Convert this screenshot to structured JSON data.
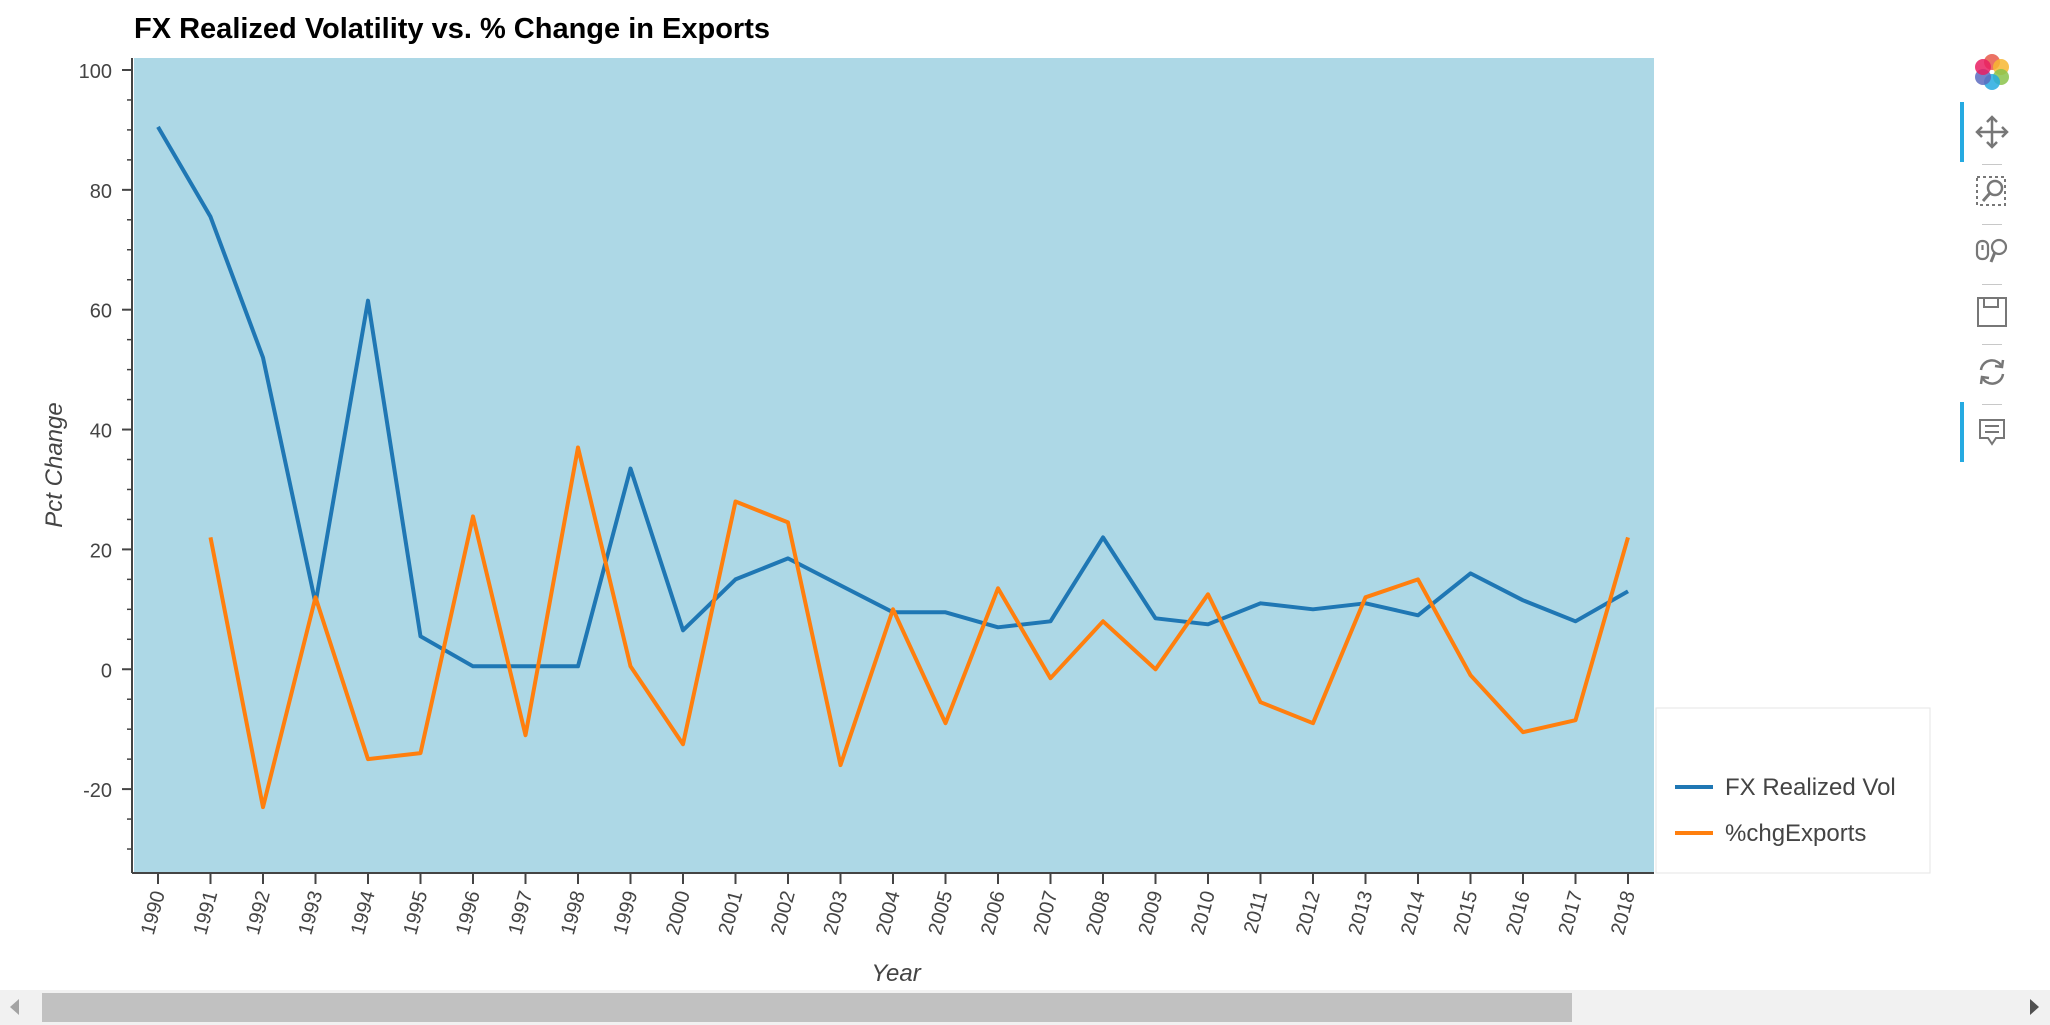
{
  "chart_data": {
    "type": "line",
    "title": "FX Realized Volatility vs. % Change in Exports",
    "xlabel": "Year",
    "ylabel": "Pct Change",
    "x": [
      "1990",
      "1991",
      "1992",
      "1993",
      "1994",
      "1995",
      "1996",
      "1997",
      "1998",
      "1999",
      "2000",
      "2001",
      "2002",
      "2003",
      "2004",
      "2005",
      "2006",
      "2007",
      "2008",
      "2009",
      "2010",
      "2011",
      "2012",
      "2013",
      "2014",
      "2015",
      "2016",
      "2017",
      "2018"
    ],
    "ylim": [
      -34,
      102
    ],
    "yticks": [
      100,
      80,
      60,
      40,
      20,
      0,
      -20
    ],
    "grid": false,
    "background": "#add8e6",
    "legend_position": "bottom-right, outside plot",
    "series": [
      {
        "name": "FX Realized Vol",
        "color": "#1f77b4",
        "values": [
          90.5,
          75.5,
          52,
          11,
          61.5,
          5.5,
          0.5,
          0.5,
          0.5,
          33.5,
          6.5,
          15,
          18.5,
          14,
          9.5,
          9.5,
          7,
          8,
          22,
          8.5,
          7.5,
          11,
          10,
          11,
          9,
          16,
          11.5,
          8,
          13
        ]
      },
      {
        "name": "%chgExports",
        "color": "#ff7f0e",
        "values": [
          null,
          22,
          -23,
          12,
          -15,
          -14,
          25.5,
          -11,
          37,
          0.5,
          -12.5,
          28,
          24.5,
          -16,
          10,
          -9,
          13.5,
          -1.5,
          8,
          0,
          12.5,
          -5.5,
          -9,
          12,
          15,
          -1,
          -10.5,
          -8.5,
          22
        ]
      }
    ]
  },
  "toolbar": {
    "tools": [
      "bokeh-logo-icon",
      "pan-icon",
      "box-zoom-icon",
      "wheel-zoom-icon",
      "save-icon",
      "reset-icon",
      "hover-icon"
    ]
  }
}
